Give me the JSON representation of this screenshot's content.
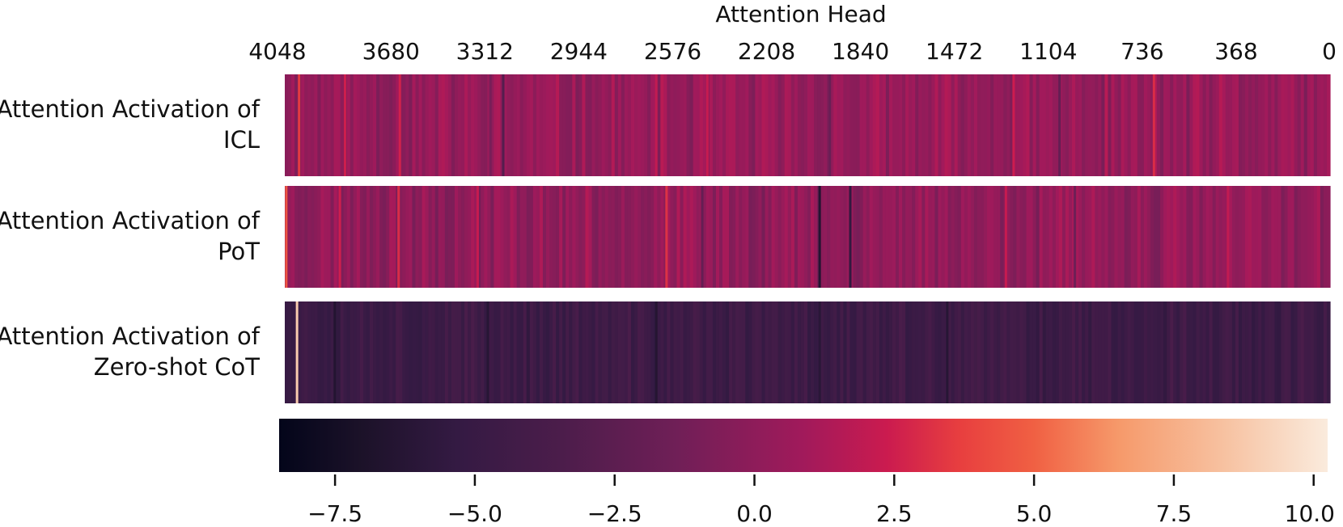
{
  "chart_data": {
    "type": "heatmap",
    "title": "Attention Head",
    "xlabel": "Attention Head",
    "x_axis_position": "top",
    "x_reversed": true,
    "xlim": [
      0,
      4096
    ],
    "x_ticks": [
      4048,
      3680,
      3312,
      2944,
      2576,
      2208,
      1840,
      1472,
      1104,
      736,
      368,
      0
    ],
    "x_tick_labels": [
      "4048",
      "3680",
      "3312",
      "2944",
      "2576",
      "2208",
      "1840",
      "1472",
      "1104",
      "736",
      "368",
      "0"
    ],
    "rows": [
      {
        "label_lines": [
          "Attention Activation of",
          "ICL"
        ],
        "base_value": 0.3,
        "spread": 1.2,
        "seed": 11,
        "highlights": [
          {
            "x": 4040,
            "value": 3.5
          },
          {
            "x": 3860,
            "value": 2.5
          },
          {
            "x": 3645,
            "value": 2.6
          },
          {
            "x": 3290,
            "value": -1.0
          },
          {
            "x": 3240,
            "value": -3.0
          },
          {
            "x": 2640,
            "value": 2.0
          },
          {
            "x": 2440,
            "value": 2.2
          },
          {
            "x": 1960,
            "value": -1.8
          },
          {
            "x": 1240,
            "value": 2.4
          },
          {
            "x": 690,
            "value": 3.0
          },
          {
            "x": 1060,
            "value": -2.0
          }
        ]
      },
      {
        "label_lines": [
          "Attention Activation of",
          "PoT"
        ],
        "base_value": 0.2,
        "spread": 1.2,
        "seed": 23,
        "highlights": [
          {
            "x": 4090,
            "value": 4.5
          },
          {
            "x": 3880,
            "value": 2.5
          },
          {
            "x": 3650,
            "value": 3.0
          },
          {
            "x": 3340,
            "value": 2.2
          },
          {
            "x": 2600,
            "value": 3.2
          },
          {
            "x": 2460,
            "value": -2.0
          },
          {
            "x": 2000,
            "value": -6.5
          },
          {
            "x": 1880,
            "value": -5.5
          },
          {
            "x": 1270,
            "value": 2.2
          },
          {
            "x": 1000,
            "value": -1.5
          },
          {
            "x": 400,
            "value": 2.0
          }
        ]
      },
      {
        "label_lines": [
          "Attention Activation of",
          "Zero-shot CoT"
        ],
        "base_value": -4.6,
        "spread": 0.9,
        "seed": 37,
        "highlights": [
          {
            "x": 4048,
            "value": 8.8
          },
          {
            "x": 3900,
            "value": -6.5
          },
          {
            "x": 3300,
            "value": -6.2
          },
          {
            "x": 2640,
            "value": -6.4
          },
          {
            "x": 2000,
            "value": -6.0
          },
          {
            "x": 1500,
            "value": -6.2
          }
        ]
      }
    ],
    "colorbar": {
      "position": "bottom",
      "colormap": "rocket",
      "vmin": -8.5,
      "vmax": 10.25,
      "ticks": [
        -7.5,
        -5.0,
        -2.5,
        0.0,
        2.5,
        5.0,
        7.5,
        10.0
      ],
      "tick_labels": [
        "−7.5",
        "−5.0",
        "−2.5",
        "0.0",
        "2.5",
        "5.0",
        "7.5",
        "10.0"
      ]
    },
    "colorscale": [
      [
        0.0,
        "#03051a"
      ],
      [
        0.08,
        "#1c1229"
      ],
      [
        0.17,
        "#341a43"
      ],
      [
        0.27,
        "#4c1d4b"
      ],
      [
        0.38,
        "#701f57"
      ],
      [
        0.5,
        "#a11a5b"
      ],
      [
        0.58,
        "#cb1b4f"
      ],
      [
        0.65,
        "#e83f3f"
      ],
      [
        0.72,
        "#f06043"
      ],
      [
        0.8,
        "#f6996a"
      ],
      [
        0.9,
        "#f7c1a0"
      ],
      [
        1.0,
        "#faebdd"
      ]
    ],
    "grid": false,
    "legend": "none"
  }
}
